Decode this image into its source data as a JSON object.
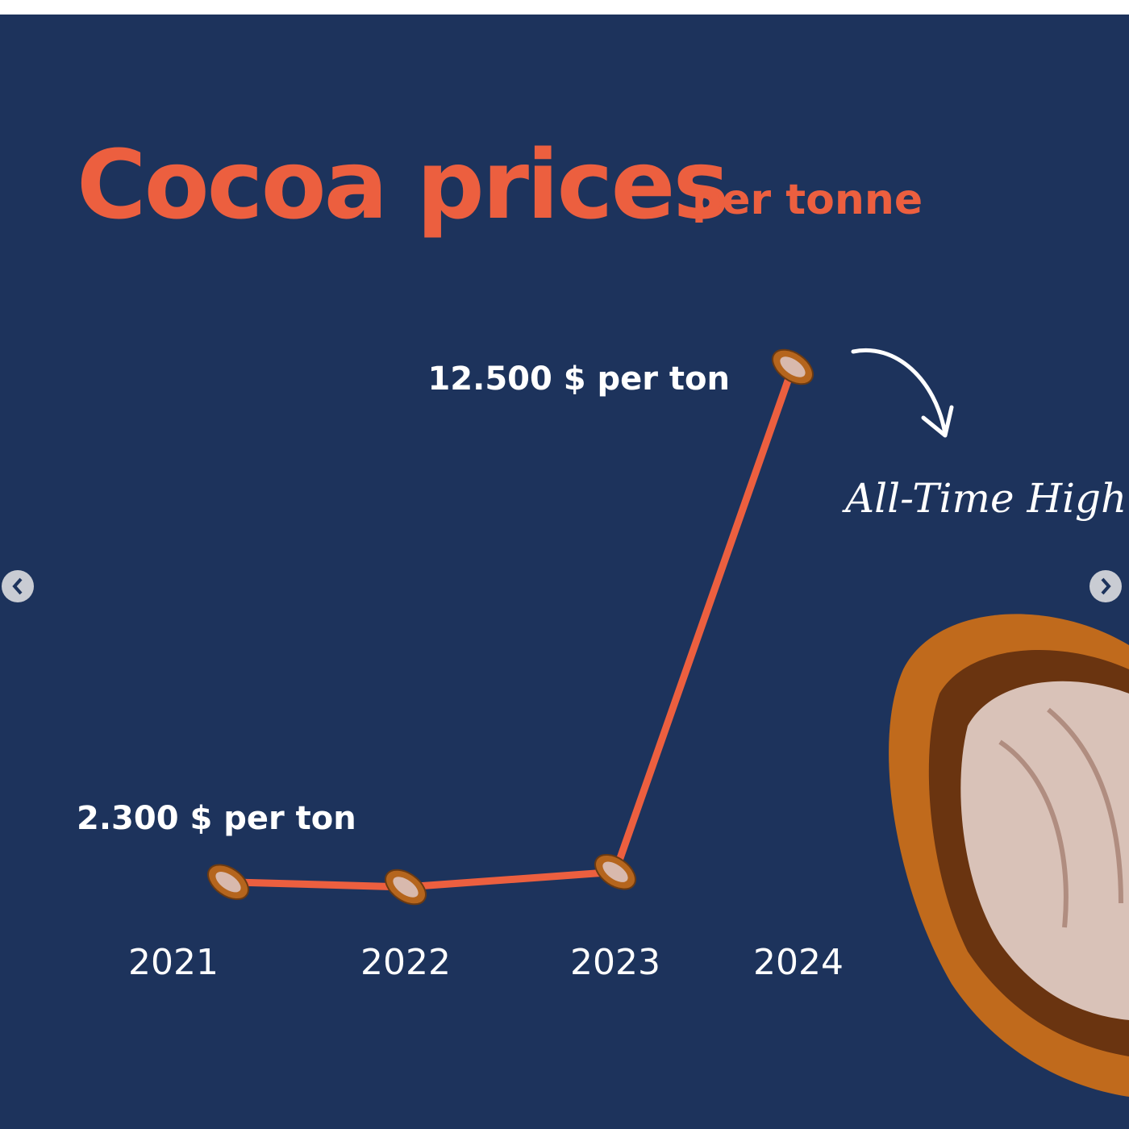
{
  "chart_data": {
    "type": "line",
    "title": "Cocoa prices",
    "subtitle": "per tonne",
    "annotation": "All-Time High",
    "categories": [
      "2021",
      "2022",
      "2023",
      "2024"
    ],
    "values": [
      2300,
      2200,
      2500,
      12500
    ],
    "value_labels": [
      "2.300 $ per ton",
      null,
      null,
      "12.500 $ per ton"
    ],
    "color": "#ec5f3f"
  }
}
